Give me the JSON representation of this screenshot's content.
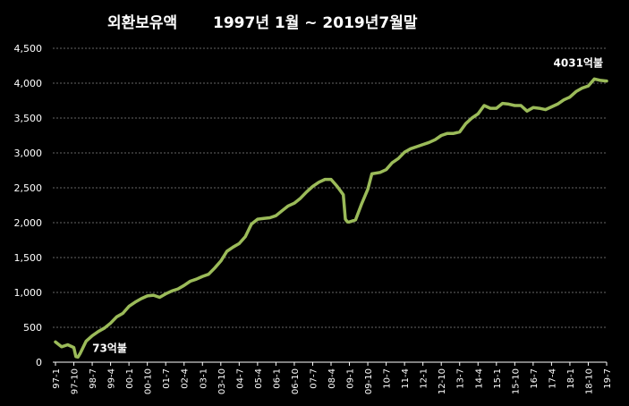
{
  "chart_data": {
    "type": "line",
    "title": "외환보유액",
    "subtitle": "1997년 1월 ~ 2019년7월말",
    "xlabel": "",
    "ylabel": "",
    "ylim": [
      0,
      4500
    ],
    "y_ticks": [
      "0",
      "500",
      "1,000",
      "1,500",
      "2,000",
      "2,500",
      "3,000",
      "3,500",
      "4,000",
      "4,500"
    ],
    "y_tick_values": [
      0,
      500,
      1000,
      1500,
      2000,
      2500,
      3000,
      3500,
      4000,
      4500
    ],
    "grid": true,
    "line_color": "#9bbb59",
    "x_tick_labels": [
      "97-1",
      "97-10",
      "98-7",
      "99-4",
      "00-1",
      "00-10",
      "01-7",
      "02-4",
      "03-1",
      "03-10",
      "04-7",
      "05-4",
      "06-1",
      "06-10",
      "07-7",
      "08-4",
      "09-1",
      "09-10",
      "10-7",
      "11-4",
      "12-1",
      "12-10",
      "13-7",
      "14-4",
      "15-1",
      "15-10",
      "16-7",
      "17-4",
      "18-1",
      "18-10",
      "19-7"
    ],
    "annotations": [
      {
        "text": "73억불",
        "x": "97-12",
        "y": 73
      },
      {
        "text": "4031억불",
        "x": "19-7",
        "y": 4031
      }
    ],
    "series": [
      {
        "points": [
          [
            "97-1",
            290
          ],
          [
            "97-4",
            220
          ],
          [
            "97-7",
            250
          ],
          [
            "97-10",
            210
          ],
          [
            "97-11",
            80
          ],
          [
            "97-12",
            73
          ],
          [
            "98-1",
            120
          ],
          [
            "98-4",
            300
          ],
          [
            "98-7",
            380
          ],
          [
            "98-10",
            440
          ],
          [
            "99-1",
            490
          ],
          [
            "99-4",
            560
          ],
          [
            "99-7",
            650
          ],
          [
            "99-10",
            700
          ],
          [
            "00-1",
            800
          ],
          [
            "00-4",
            860
          ],
          [
            "00-7",
            910
          ],
          [
            "00-10",
            950
          ],
          [
            "01-1",
            960
          ],
          [
            "01-4",
            930
          ],
          [
            "01-7",
            980
          ],
          [
            "01-10",
            1020
          ],
          [
            "02-1",
            1050
          ],
          [
            "02-4",
            1100
          ],
          [
            "02-7",
            1160
          ],
          [
            "02-10",
            1190
          ],
          [
            "03-1",
            1230
          ],
          [
            "03-4",
            1260
          ],
          [
            "03-7",
            1350
          ],
          [
            "03-10",
            1450
          ],
          [
            "04-1",
            1590
          ],
          [
            "04-4",
            1650
          ],
          [
            "04-7",
            1700
          ],
          [
            "04-10",
            1800
          ],
          [
            "05-1",
            1980
          ],
          [
            "05-4",
            2050
          ],
          [
            "05-7",
            2060
          ],
          [
            "05-10",
            2070
          ],
          [
            "06-1",
            2100
          ],
          [
            "06-4",
            2170
          ],
          [
            "06-7",
            2240
          ],
          [
            "06-10",
            2280
          ],
          [
            "07-1",
            2350
          ],
          [
            "07-4",
            2440
          ],
          [
            "07-7",
            2520
          ],
          [
            "07-10",
            2580
          ],
          [
            "08-1",
            2620
          ],
          [
            "08-4",
            2620
          ],
          [
            "08-7",
            2520
          ],
          [
            "08-10",
            2400
          ],
          [
            "08-11",
            2050
          ],
          [
            "08-12",
            2010
          ],
          [
            "09-1",
            2010
          ],
          [
            "09-4",
            2040
          ],
          [
            "09-7",
            2270
          ],
          [
            "09-10",
            2480
          ],
          [
            "09-12",
            2700
          ],
          [
            "10-4",
            2720
          ],
          [
            "10-7",
            2760
          ],
          [
            "10-10",
            2860
          ],
          [
            "11-1",
            2920
          ],
          [
            "11-4",
            3010
          ],
          [
            "11-7",
            3060
          ],
          [
            "11-10",
            3090
          ],
          [
            "12-1",
            3120
          ],
          [
            "12-4",
            3150
          ],
          [
            "12-7",
            3190
          ],
          [
            "12-10",
            3250
          ],
          [
            "13-1",
            3280
          ],
          [
            "13-4",
            3280
          ],
          [
            "13-7",
            3300
          ],
          [
            "13-10",
            3420
          ],
          [
            "14-1",
            3500
          ],
          [
            "14-4",
            3560
          ],
          [
            "14-7",
            3680
          ],
          [
            "14-10",
            3640
          ],
          [
            "15-1",
            3640
          ],
          [
            "15-4",
            3710
          ],
          [
            "15-7",
            3700
          ],
          [
            "15-10",
            3680
          ],
          [
            "16-1",
            3680
          ],
          [
            "16-4",
            3600
          ],
          [
            "16-7",
            3650
          ],
          [
            "16-10",
            3640
          ],
          [
            "17-1",
            3620
          ],
          [
            "17-4",
            3660
          ],
          [
            "17-7",
            3700
          ],
          [
            "17-10",
            3760
          ],
          [
            "18-1",
            3800
          ],
          [
            "18-4",
            3880
          ],
          [
            "18-7",
            3930
          ],
          [
            "18-10",
            3960
          ],
          [
            "19-1",
            4060
          ],
          [
            "19-4",
            4040
          ],
          [
            "19-7",
            4031
          ]
        ]
      }
    ]
  }
}
